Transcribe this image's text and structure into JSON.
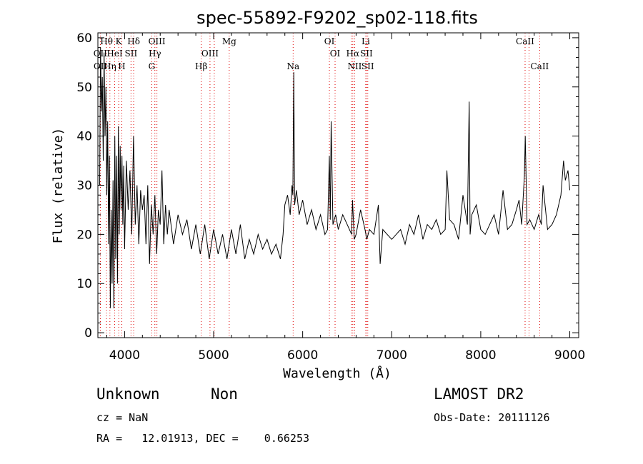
{
  "chart_data": {
    "type": "line",
    "title": "spec-55892-F9202_sp02-118.fits",
    "xlabel": "Wavelength (Å)",
    "ylabel": "Flux (relative)",
    "xlim": [
      3700,
      9100
    ],
    "ylim": [
      -1,
      61
    ],
    "x_ticks": [
      4000,
      5000,
      6000,
      7000,
      8000,
      9000
    ],
    "y_ticks": [
      0,
      10,
      20,
      30,
      40,
      50,
      60
    ],
    "grid": false,
    "series": [
      {
        "color": "#000000",
        "x": [
          3720,
          3730,
          3740,
          3750,
          3760,
          3770,
          3780,
          3790,
          3800,
          3810,
          3820,
          3830,
          3840,
          3850,
          3860,
          3870,
          3880,
          3890,
          3900,
          3910,
          3920,
          3930,
          3940,
          3950,
          3960,
          3970,
          3980,
          3990,
          4000,
          4020,
          4040,
          4060,
          4080,
          4100,
          4120,
          4140,
          4160,
          4180,
          4200,
          4220,
          4240,
          4260,
          4280,
          4300,
          4320,
          4340,
          4360,
          4380,
          4400,
          4420,
          4440,
          4460,
          4480,
          4500,
          4550,
          4600,
          4650,
          4700,
          4750,
          4800,
          4850,
          4900,
          4950,
          5000,
          5050,
          5100,
          5150,
          5200,
          5250,
          5300,
          5350,
          5400,
          5450,
          5500,
          5550,
          5600,
          5650,
          5700,
          5750,
          5780,
          5800,
          5830,
          5860,
          5880,
          5890,
          5900,
          5910,
          5930,
          5960,
          6000,
          6050,
          6100,
          6150,
          6200,
          6250,
          6280,
          6300,
          6310,
          6320,
          6340,
          6370,
          6400,
          6450,
          6500,
          6550,
          6560,
          6580,
          6600,
          6650,
          6700,
          6720,
          6750,
          6800,
          6850,
          6870,
          6900,
          6950,
          7000,
          7050,
          7100,
          7150,
          7200,
          7250,
          7300,
          7350,
          7400,
          7450,
          7500,
          7550,
          7600,
          7620,
          7650,
          7700,
          7750,
          7800,
          7850,
          7870,
          7880,
          7900,
          7950,
          8000,
          8050,
          8100,
          8150,
          8200,
          8250,
          8300,
          8350,
          8400,
          8430,
          8460,
          8490,
          8500,
          8520,
          8550,
          8600,
          8650,
          8680,
          8700,
          8750,
          8800,
          8850,
          8900,
          8930,
          8950,
          8980,
          9000
        ],
        "y": [
          30,
          58,
          45,
          52,
          35,
          57,
          40,
          50,
          28,
          43,
          18,
          36,
          5,
          25,
          10,
          31,
          5,
          40,
          15,
          36,
          10,
          42,
          20,
          38,
          25,
          36,
          22,
          34,
          17,
          35,
          25,
          33,
          20,
          40,
          22,
          30,
          18,
          29,
          25,
          28,
          18,
          30,
          14,
          26,
          20,
          28,
          16,
          25,
          22,
          33,
          18,
          26,
          20,
          25,
          18,
          24,
          20,
          23,
          17,
          22,
          16,
          22,
          15,
          21,
          16,
          20,
          15,
          21,
          16,
          22,
          15,
          19,
          16,
          20,
          17,
          19,
          16,
          18,
          15,
          20,
          26,
          28,
          24,
          30,
          28,
          53,
          26,
          29,
          24,
          27,
          22,
          25,
          21,
          24,
          20,
          21,
          36,
          23,
          43,
          22,
          24,
          21,
          24,
          22,
          20,
          27,
          19,
          20,
          25,
          21,
          19,
          21,
          20,
          26,
          14,
          21,
          20,
          19,
          20,
          21,
          18,
          22,
          20,
          24,
          19,
          22,
          21,
          23,
          20,
          21,
          33,
          23,
          22,
          19,
          28,
          22,
          47,
          20,
          24,
          26,
          21,
          20,
          22,
          24,
          20,
          29,
          21,
          22,
          25,
          27,
          22,
          32,
          40,
          22,
          23,
          21,
          24,
          22,
          30,
          21,
          22,
          24,
          28,
          35,
          31,
          33,
          29
        ]
      }
    ],
    "line_labels": [
      {
        "text": "Hθ",
        "x": 3797,
        "row": 0
      },
      {
        "text": "K",
        "x": 3934,
        "row": 0
      },
      {
        "text": "Hδ",
        "x": 4102,
        "row": 0
      },
      {
        "text": "OIII",
        "x": 4363,
        "row": 0
      },
      {
        "text": "Mg",
        "x": 5175,
        "row": 0
      },
      {
        "text": "OI",
        "x": 6300,
        "row": 0
      },
      {
        "text": "Li",
        "x": 6708,
        "row": 0
      },
      {
        "text": "CaII",
        "x": 8498,
        "row": 0
      },
      {
        "text": "OII",
        "x": 3727,
        "row": 1
      },
      {
        "text": "HeI",
        "x": 3889,
        "row": 1
      },
      {
        "text": "SII",
        "x": 4072,
        "row": 1
      },
      {
        "text": "Hγ",
        "x": 4340,
        "row": 1
      },
      {
        "text": "OIII",
        "x": 4959,
        "row": 1
      },
      {
        "text": "OI",
        "x": 6364,
        "row": 1
      },
      {
        "text": "Hα",
        "x": 6563,
        "row": 1
      },
      {
        "text": "SII",
        "x": 6716,
        "row": 1
      },
      {
        "text": "OII",
        "x": 3729,
        "row": 2
      },
      {
        "text": "Hη",
        "x": 3835,
        "row": 2
      },
      {
        "text": "H",
        "x": 3969,
        "row": 2
      },
      {
        "text": "G",
        "x": 4305,
        "row": 2
      },
      {
        "text": "Hβ",
        "x": 4861,
        "row": 2
      },
      {
        "text": "Na",
        "x": 5893,
        "row": 2
      },
      {
        "text": "NII",
        "x": 6584,
        "row": 2
      },
      {
        "text": "SII",
        "x": 6731,
        "row": 2
      },
      {
        "text": "CaII",
        "x": 8662,
        "row": 2
      }
    ],
    "marker_lines": [
      3727,
      3729,
      3797,
      3835,
      3889,
      3934,
      3969,
      4072,
      4102,
      4305,
      4340,
      4363,
      4861,
      4959,
      5007,
      5175,
      5893,
      6300,
      6364,
      6548,
      6563,
      6584,
      6708,
      6716,
      6731,
      8498,
      8542,
      8662
    ],
    "marker_color": "#e00000"
  },
  "info": {
    "class": "Unknown",
    "subclass": "Non",
    "survey": "LAMOST DR2",
    "cz": "cz = NaN",
    "obs_date": "Obs-Date: 20111126",
    "coords": "RA =   12.01913, DEC =    0.66253"
  }
}
